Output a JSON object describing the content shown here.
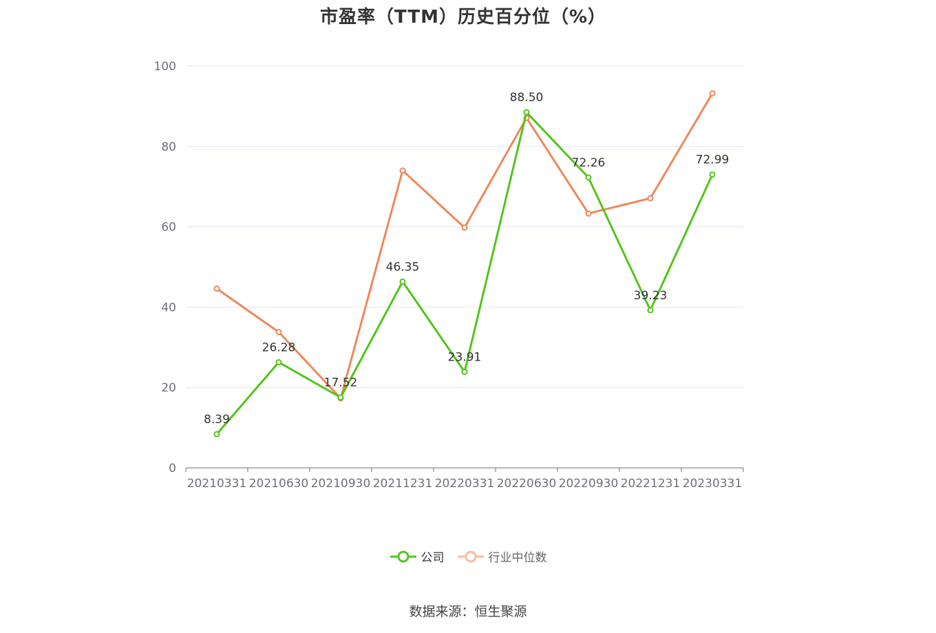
{
  "chart_data": {
    "type": "line",
    "title": "市盈率（TTM）历史百分位（%）",
    "categories": [
      "20210331",
      "20210630",
      "20210930",
      "20211231",
      "20220331",
      "20220630",
      "20220930",
      "20221231",
      "20230331"
    ],
    "ylim": [
      0,
      100
    ],
    "yticks": [
      0,
      20,
      40,
      60,
      80,
      100
    ],
    "grid": true,
    "legend_position": "bottom",
    "series": [
      {
        "name": "公司",
        "color": "#52c41a",
        "values": [
          8.39,
          26.28,
          17.52,
          46.35,
          23.91,
          88.5,
          72.26,
          39.23,
          72.99
        ],
        "labels": [
          "8.39",
          "26.28",
          "17.52",
          "46.35",
          "23.91",
          "88.50",
          "72.26",
          "39.23",
          "72.99"
        ]
      },
      {
        "name": "行业中位数",
        "color": "#f0875a",
        "values": [
          44.6,
          33.8,
          17.3,
          74.0,
          59.8,
          87.1,
          63.3,
          67.1,
          93.2
        ]
      }
    ]
  },
  "legend": {
    "company_label": "公司",
    "industry_label": "行业中位数"
  },
  "source": "数据来源：恒生聚源"
}
